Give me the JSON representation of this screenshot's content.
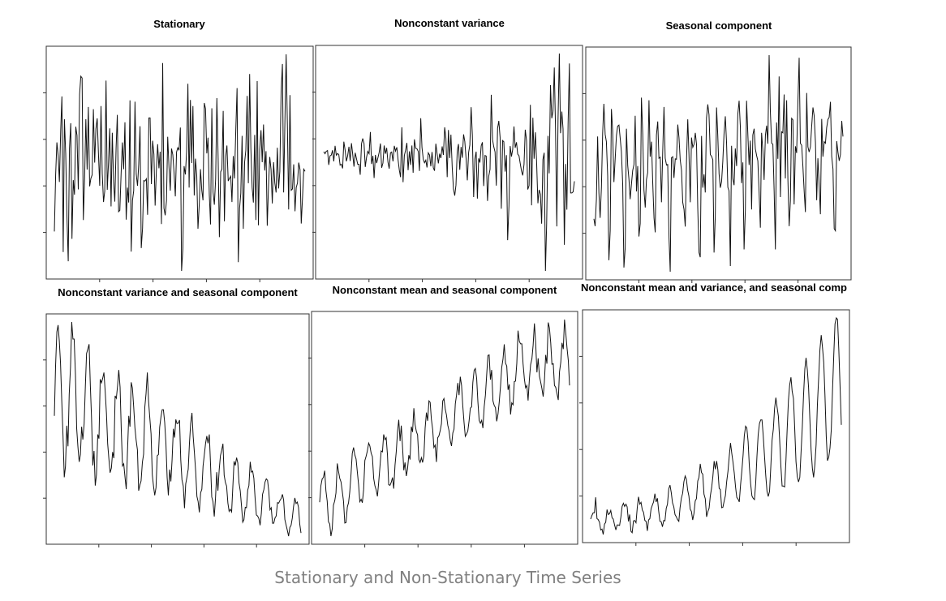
{
  "caption": "Stationary and Non-Stationary Time Series",
  "colors": {
    "line": "#111111",
    "frame": "#333333",
    "caption": "#808080",
    "background": "#ffffff"
  },
  "chart_data": [
    {
      "type": "line",
      "title": "Stationary",
      "n": 200,
      "values": []
    },
    {
      "type": "line",
      "title": "Nonconstant variance",
      "n": 200,
      "values": []
    },
    {
      "type": "line",
      "title": "Seasonal component",
      "n": 200,
      "values": []
    },
    {
      "type": "line",
      "title": "Nonconstant variance and seasonal component",
      "n": 200,
      "values": []
    },
    {
      "type": "line",
      "title": "Nonconstant mean and seasonal component",
      "n": 200,
      "values": []
    },
    {
      "type": "line",
      "title": "Nonconstant mean and variance, and seasonal comp",
      "n": 200,
      "values": []
    }
  ]
}
